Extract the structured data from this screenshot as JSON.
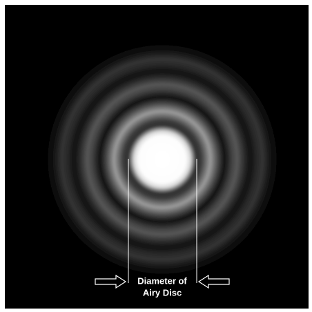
{
  "label": [
    "Diameter of",
    "Airy Disc"
  ]
}
